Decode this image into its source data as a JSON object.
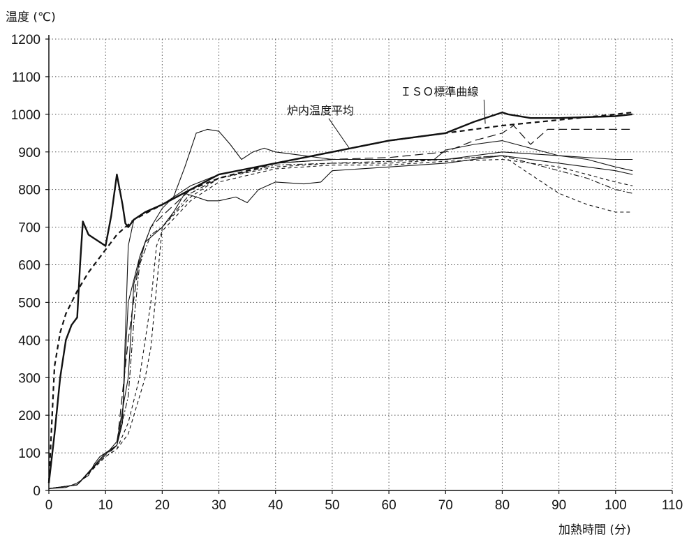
{
  "chart_data": {
    "type": "line",
    "title": "",
    "xlabel": "加熱時間 (分)",
    "ylabel": "温度 (℃)",
    "xlim": [
      0,
      110
    ],
    "ylim": [
      0,
      1200
    ],
    "xticks": [
      0,
      10,
      20,
      30,
      40,
      50,
      60,
      70,
      80,
      90,
      100,
      110
    ],
    "yticks": [
      0,
      100,
      200,
      300,
      400,
      500,
      600,
      700,
      800,
      900,
      1000,
      1100,
      1200
    ],
    "grid": true,
    "annotations": [
      {
        "text": "ＩＳＯ標準曲線",
        "x": 62,
        "y": 1050,
        "points_to": [
          77,
          975
        ]
      },
      {
        "text": "炉内温度平均",
        "x": 42,
        "y": 1000,
        "points_to": [
          53,
          910
        ]
      }
    ],
    "series": [
      {
        "style": "dashed-bold",
        "x": [
          0,
          1,
          2,
          3,
          5,
          7,
          10,
          12,
          15,
          20,
          25,
          30,
          40,
          50,
          60,
          70,
          80,
          90,
          100,
          103
        ],
        "y": [
          20,
          330,
          420,
          470,
          530,
          580,
          640,
          680,
          720,
          760,
          800,
          830,
          870,
          900,
          930,
          950,
          970,
          985,
          1000,
          1005
        ]
      },
      {
        "style": "solid-bold",
        "x": [
          0,
          1,
          2,
          3,
          4,
          5,
          5.5,
          6,
          7,
          8,
          9,
          10,
          11,
          12,
          13,
          13.5,
          14,
          15,
          17,
          20,
          25,
          30,
          35,
          40,
          50,
          60,
          70,
          75,
          80,
          81,
          85,
          90,
          100,
          103
        ],
        "y": [
          20,
          150,
          300,
          400,
          440,
          460,
          600,
          715,
          680,
          670,
          660,
          650,
          730,
          840,
          760,
          710,
          700,
          720,
          740,
          760,
          800,
          840,
          855,
          870,
          900,
          930,
          950,
          980,
          1005,
          1000,
          990,
          990,
          995,
          1000
        ]
      },
      {
        "style": "solid-thin",
        "x": [
          0,
          3,
          5,
          7,
          8,
          9,
          10,
          11,
          12,
          13,
          14,
          15,
          17,
          20,
          25,
          30,
          40,
          50,
          60,
          68,
          70,
          75,
          80,
          85,
          90,
          95,
          100,
          103
        ],
        "y": [
          5,
          8,
          20,
          40,
          70,
          90,
          100,
          105,
          120,
          180,
          650,
          720,
          740,
          760,
          810,
          840,
          870,
          880,
          880,
          880,
          905,
          920,
          930,
          910,
          890,
          880,
          860,
          850
        ]
      },
      {
        "style": "solid-thin",
        "x": [
          0,
          5,
          10,
          12,
          13,
          14,
          16,
          18,
          20,
          22,
          24,
          26,
          28,
          30,
          32,
          34,
          36,
          38,
          40,
          45,
          50,
          60,
          70,
          80,
          90,
          100,
          103
        ],
        "y": [
          5,
          15,
          100,
          120,
          200,
          500,
          620,
          700,
          750,
          780,
          860,
          950,
          960,
          955,
          920,
          880,
          900,
          910,
          900,
          890,
          880,
          880,
          880,
          900,
          890,
          880,
          880
        ]
      },
      {
        "style": "solid-thin",
        "x": [
          0,
          5,
          10,
          12,
          14,
          15,
          17,
          20,
          22,
          24,
          26,
          28,
          30,
          33,
          35,
          37,
          40,
          45,
          48,
          50,
          60,
          70,
          80,
          90,
          100,
          103
        ],
        "y": [
          5,
          15,
          95,
          130,
          300,
          550,
          660,
          700,
          740,
          790,
          780,
          770,
          770,
          780,
          765,
          800,
          820,
          815,
          820,
          850,
          860,
          870,
          890,
          870,
          850,
          840
        ]
      },
      {
        "style": "dash-dot",
        "x": [
          0,
          5,
          10,
          12,
          14,
          15,
          16,
          18,
          20,
          25,
          30,
          40,
          50,
          60,
          70,
          80,
          85,
          90,
          95,
          100,
          103
        ],
        "y": [
          5,
          15,
          100,
          120,
          250,
          450,
          600,
          680,
          700,
          790,
          830,
          865,
          870,
          875,
          880,
          890,
          870,
          850,
          830,
          800,
          790
        ]
      },
      {
        "style": "dashed-thin",
        "x": [
          0,
          5,
          10,
          12,
          14,
          16,
          17,
          18,
          20,
          25,
          30,
          40,
          50,
          60,
          70,
          80,
          85,
          90,
          95,
          100,
          103
        ],
        "y": [
          5,
          15,
          90,
          110,
          150,
          250,
          300,
          380,
          700,
          780,
          830,
          860,
          870,
          870,
          880,
          890,
          840,
          790,
          760,
          740,
          740
        ]
      },
      {
        "style": "dashed-thin",
        "x": [
          0,
          5,
          10,
          12,
          14,
          16,
          18,
          19,
          20,
          25,
          30,
          40,
          50,
          60,
          70,
          80,
          85,
          90,
          95,
          100,
          103
        ],
        "y": [
          5,
          15,
          90,
          110,
          180,
          300,
          500,
          650,
          690,
          770,
          820,
          855,
          865,
          865,
          875,
          880,
          870,
          860,
          840,
          820,
          810
        ]
      },
      {
        "style": "dashed-long",
        "x": [
          0,
          5,
          10,
          12,
          14,
          16,
          18,
          20,
          25,
          30,
          40,
          50,
          60,
          70,
          75,
          80,
          82,
          85,
          88,
          90,
          95,
          100,
          103
        ],
        "y": [
          5,
          15,
          95,
          120,
          400,
          620,
          700,
          730,
          800,
          840,
          870,
          880,
          885,
          900,
          930,
          950,
          970,
          920,
          960,
          960,
          960,
          960,
          960
        ]
      }
    ]
  }
}
